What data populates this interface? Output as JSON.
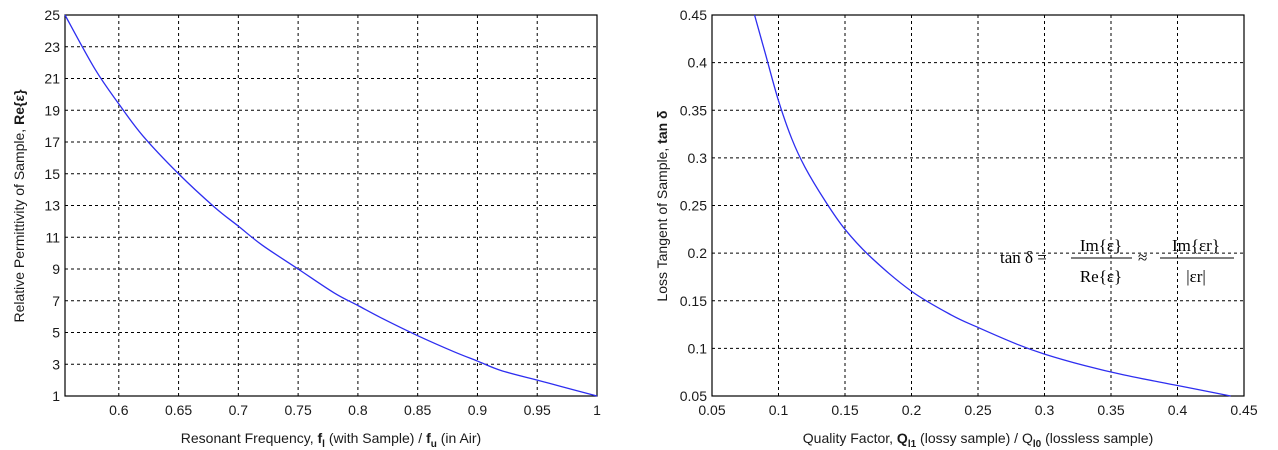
{
  "chart_data": [
    {
      "type": "line",
      "xlabel_parts": [
        "Resonant Frequency, ",
        "f",
        "l",
        " (with Sample) / ",
        "f",
        "u",
        " (in Air)"
      ],
      "ylabel_parts": [
        "Relative Permittivity of Sample, ",
        "Re{ε}"
      ],
      "xlim": [
        0.555,
        1.0
      ],
      "ylim": [
        1,
        25
      ],
      "xticks": [
        "0.6",
        "0.65",
        "0.7",
        "0.75",
        "0.8",
        "0.85",
        "0.9",
        "0.95",
        "1"
      ],
      "xtick_values": [
        0.6,
        0.65,
        0.7,
        0.75,
        0.8,
        0.85,
        0.9,
        0.95,
        1.0
      ],
      "yticks": [
        "1",
        "3",
        "5",
        "7",
        "9",
        "11",
        "13",
        "15",
        "17",
        "19",
        "21",
        "23",
        "25"
      ],
      "ytick_values": [
        1,
        3,
        5,
        7,
        9,
        11,
        13,
        15,
        17,
        19,
        21,
        23,
        25
      ],
      "grid": true,
      "line_color": "#2e2ef0",
      "series": [
        {
          "x": [
            0.555,
            0.58,
            0.6,
            0.62,
            0.65,
            0.68,
            0.7,
            0.72,
            0.75,
            0.78,
            0.8,
            0.82,
            0.85,
            0.88,
            0.9,
            0.92,
            0.95,
            0.97,
            1.0
          ],
          "y": [
            25,
            21.6,
            19.4,
            17.4,
            15.0,
            12.9,
            11.7,
            10.5,
            9.0,
            7.5,
            6.7,
            5.9,
            4.8,
            3.8,
            3.2,
            2.6,
            2.0,
            1.6,
            1.0
          ]
        }
      ]
    },
    {
      "type": "line",
      "xlabel_parts": [
        "Quality Factor, ",
        "Q",
        "l1",
        " (lossy sample) / ",
        "Q",
        "l0",
        " (lossless sample)"
      ],
      "ylabel_parts": [
        "Loss Tangent of Sample, ",
        "tan δ"
      ],
      "xlim": [
        0.05,
        0.45
      ],
      "ylim": [
        0.05,
        0.45
      ],
      "xticks": [
        "0.05",
        "0.1",
        "0.15",
        "0.2",
        "0.25",
        "0.3",
        "0.35",
        "0.4",
        "0.45"
      ],
      "xtick_values": [
        0.05,
        0.1,
        0.15,
        0.2,
        0.25,
        0.3,
        0.35,
        0.4,
        0.45
      ],
      "yticks": [
        "0.05",
        "0.1",
        "0.15",
        "0.2",
        "0.25",
        "0.3",
        "0.35",
        "0.4",
        "0.45"
      ],
      "ytick_values": [
        0.05,
        0.1,
        0.15,
        0.2,
        0.25,
        0.3,
        0.35,
        0.4,
        0.45
      ],
      "grid": true,
      "line_color": "#2e2ef0",
      "series": [
        {
          "x": [
            0.082,
            0.09,
            0.1,
            0.11,
            0.12,
            0.135,
            0.15,
            0.17,
            0.2,
            0.23,
            0.25,
            0.28,
            0.3,
            0.33,
            0.36,
            0.4,
            0.44
          ],
          "y": [
            0.45,
            0.41,
            0.36,
            0.32,
            0.29,
            0.255,
            0.225,
            0.195,
            0.16,
            0.135,
            0.122,
            0.104,
            0.094,
            0.082,
            0.072,
            0.061,
            0.05
          ]
        }
      ],
      "equation": {
        "lhs": "tan δ =",
        "num1": "Im{ε}",
        "den1": "Re{ε}",
        "approx": "≈",
        "num2": "Im{εr}",
        "den2": "|εr|"
      }
    }
  ]
}
